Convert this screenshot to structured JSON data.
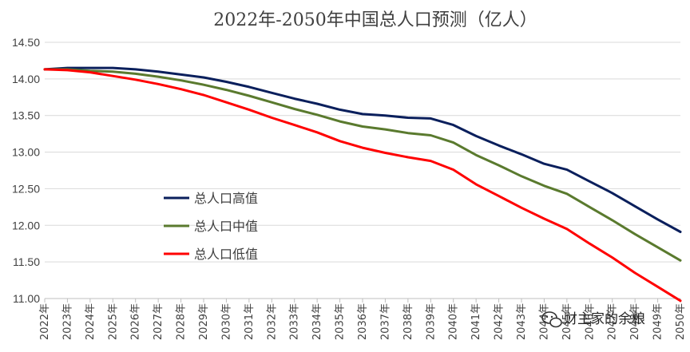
{
  "chart_data": {
    "type": "line",
    "title": "2022年-2050年中国总人口预测（亿人）",
    "xlabel": "",
    "ylabel": "",
    "ylim": [
      11.0,
      14.5
    ],
    "yticks": [
      "14.50",
      "14.00",
      "13.50",
      "13.00",
      "12.50",
      "12.00",
      "11.50",
      "11.00"
    ],
    "x": [
      "2022年",
      "2023年",
      "2024年",
      "2025年",
      "2026年",
      "2027年",
      "2028年",
      "2029年",
      "2030年",
      "2031年",
      "2032年",
      "2033年",
      "2034年",
      "2035年",
      "2036年",
      "2037年",
      "2038年",
      "2039年",
      "2040年",
      "2041年",
      "2042年",
      "2043年",
      "2044年",
      "2045年",
      "2046年",
      "2047年",
      "2048年",
      "2049年",
      "2050年"
    ],
    "grid": true,
    "legend_position": "center-left",
    "series": [
      {
        "name": "总人口高值",
        "color": "#0a1f5c",
        "values": [
          14.13,
          14.15,
          14.15,
          14.15,
          14.13,
          14.1,
          14.06,
          14.02,
          13.96,
          13.89,
          13.81,
          13.73,
          13.66,
          13.58,
          13.52,
          13.5,
          13.47,
          13.46,
          13.37,
          13.22,
          13.09,
          12.97,
          12.84,
          12.76,
          12.6,
          12.44,
          12.26,
          12.08,
          11.91
        ]
      },
      {
        "name": "总人口中值",
        "color": "#5a7a2e",
        "values": [
          14.13,
          14.13,
          14.11,
          14.1,
          14.07,
          14.03,
          13.98,
          13.92,
          13.85,
          13.77,
          13.68,
          13.59,
          13.51,
          13.42,
          13.35,
          13.31,
          13.26,
          13.23,
          13.13,
          12.96,
          12.82,
          12.67,
          12.54,
          12.43,
          12.25,
          12.07,
          11.88,
          11.7,
          11.52
        ]
      },
      {
        "name": "总人口低值",
        "color": "#ff0000",
        "values": [
          14.13,
          14.12,
          14.09,
          14.04,
          13.99,
          13.93,
          13.86,
          13.78,
          13.68,
          13.58,
          13.47,
          13.37,
          13.27,
          13.15,
          13.06,
          12.99,
          12.93,
          12.88,
          12.76,
          12.56,
          12.4,
          12.24,
          12.09,
          11.95,
          11.75,
          11.56,
          11.35,
          11.16,
          10.97
        ]
      }
    ]
  },
  "watermark": {
    "icon": "wechat-icon",
    "text": "财主家的余粮"
  }
}
